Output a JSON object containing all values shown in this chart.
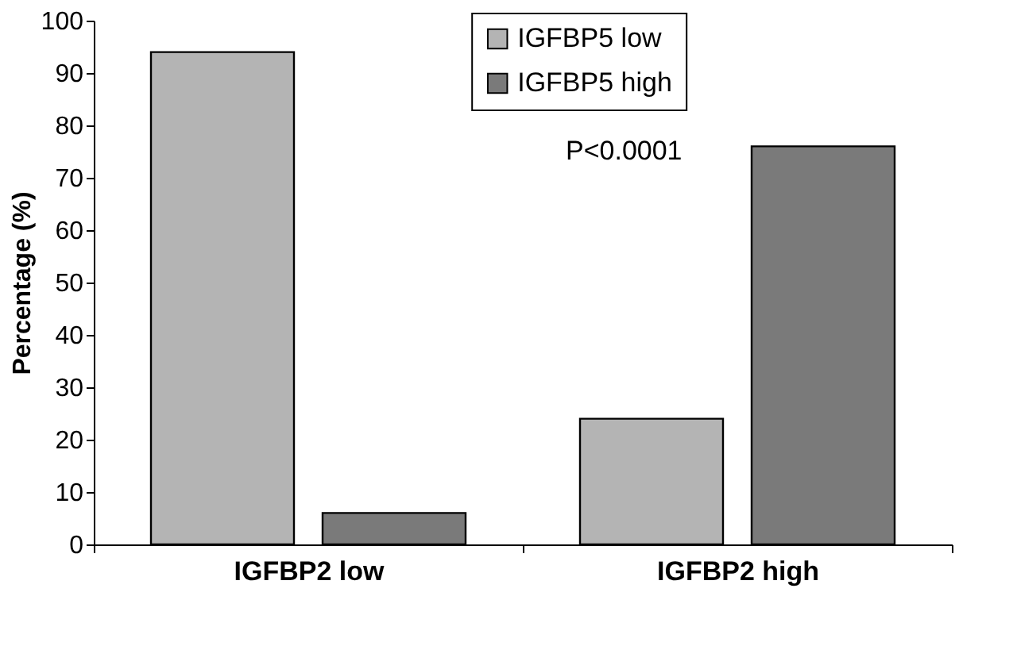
{
  "chart_data": {
    "type": "bar",
    "ylabel": "Percentage (%)",
    "categories": [
      "IGFBP2 low",
      "IGFBP2 high"
    ],
    "series": [
      {
        "name": "IGFBP5 low",
        "color": "#b4b4b4",
        "values": [
          94,
          24
        ]
      },
      {
        "name": "IGFBP5 high",
        "color": "#7a7a7a",
        "values": [
          6,
          76
        ]
      }
    ],
    "ylim": [
      0,
      100
    ],
    "yticks": [
      0,
      10,
      20,
      30,
      40,
      50,
      60,
      70,
      80,
      90,
      100
    ],
    "grid": false,
    "legend": "top",
    "annotations": [
      "P<0.0001"
    ]
  }
}
